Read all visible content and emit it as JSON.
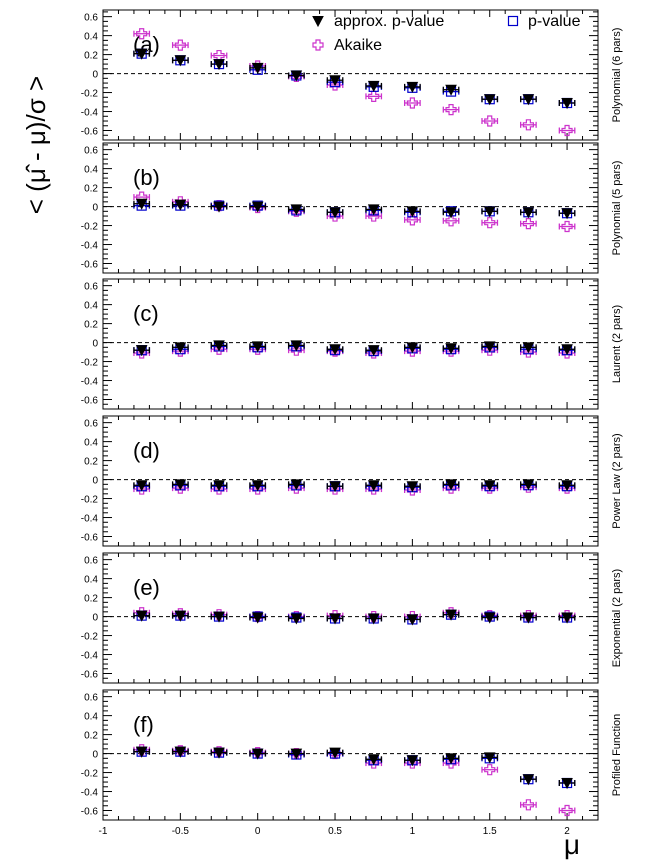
{
  "chart_data": {
    "type": "scatter",
    "ylabel": "< (μ̂ - μ)/σ >",
    "xlabel": "μ",
    "xlim": [
      -1,
      2.2
    ],
    "ylim": [
      -0.7,
      0.67
    ],
    "x_ticks": [
      -1,
      -0.5,
      0,
      0.5,
      1,
      1.5,
      2
    ],
    "x_tick_labels": [
      "-1",
      "-0.5",
      "0",
      "0.5",
      "1",
      "1.5",
      "2"
    ],
    "y_ticks": [
      -0.6,
      -0.4,
      -0.2,
      0,
      0.2,
      0.4,
      0.6
    ],
    "y_tick_labels": [
      "-0.6",
      "-0.4",
      "-0.2",
      "0",
      "0.2",
      "0.4",
      "0.6"
    ],
    "x": [
      -0.75,
      -0.5,
      -0.25,
      0,
      0.25,
      0.5,
      0.75,
      1,
      1.25,
      1.5,
      1.75,
      2
    ],
    "x_error": 0.05,
    "legend": {
      "position": "top-right",
      "entries": [
        {
          "label": "approx. p-value",
          "marker": "triangle-down-filled",
          "color": "#000000"
        },
        {
          "label": "p-value",
          "marker": "square-open",
          "color": "#0000cc"
        },
        {
          "label": "Akaike",
          "marker": "cross-open",
          "color": "#cc33cc"
        }
      ]
    },
    "panels": [
      {
        "letter": "(a)",
        "side_label": "Polynomial (6 pars)",
        "series": [
          {
            "name": "approx. p-value",
            "values": [
              0.21,
              0.14,
              0.1,
              0.06,
              -0.02,
              -0.07,
              -0.13,
              -0.14,
              -0.17,
              -0.27,
              -0.27,
              -0.31
            ]
          },
          {
            "name": "p-value",
            "values": [
              0.21,
              0.14,
              0.1,
              0.04,
              -0.02,
              -0.09,
              -0.14,
              -0.15,
              -0.19,
              -0.27,
              -0.27,
              -0.31
            ]
          },
          {
            "name": "Akaike",
            "values": [
              0.42,
              0.3,
              0.19,
              0.08,
              -0.03,
              -0.12,
              -0.24,
              -0.31,
              -0.38,
              -0.5,
              -0.54,
              -0.6
            ]
          }
        ]
      },
      {
        "letter": "(b)",
        "side_label": "Polynomial (5 pars)",
        "series": [
          {
            "name": "approx. p-value",
            "values": [
              0.03,
              0.02,
              0.0,
              0.0,
              -0.03,
              -0.06,
              -0.03,
              -0.05,
              -0.06,
              -0.05,
              -0.06,
              -0.07
            ]
          },
          {
            "name": "p-value",
            "values": [
              0.01,
              0.01,
              0.01,
              0.01,
              -0.04,
              -0.06,
              -0.04,
              -0.06,
              -0.05,
              -0.05,
              -0.06,
              -0.07
            ]
          },
          {
            "name": "Akaike",
            "values": [
              0.1,
              0.05,
              0.01,
              -0.01,
              -0.05,
              -0.1,
              -0.1,
              -0.14,
              -0.15,
              -0.17,
              -0.18,
              -0.21
            ]
          }
        ]
      },
      {
        "letter": "(c)",
        "side_label": "Laurent (2 pars)",
        "series": [
          {
            "name": "approx. p-value",
            "values": [
              -0.08,
              -0.05,
              -0.03,
              -0.04,
              -0.03,
              -0.07,
              -0.08,
              -0.05,
              -0.06,
              -0.04,
              -0.05,
              -0.07
            ]
          },
          {
            "name": "p-value",
            "values": [
              -0.08,
              -0.07,
              -0.04,
              -0.05,
              -0.04,
              -0.08,
              -0.09,
              -0.06,
              -0.07,
              -0.05,
              -0.07,
              -0.08
            ]
          },
          {
            "name": "Akaike",
            "values": [
              -0.11,
              -0.09,
              -0.07,
              -0.07,
              -0.08,
              -0.09,
              -0.11,
              -0.09,
              -0.09,
              -0.08,
              -0.1,
              -0.11
            ]
          }
        ]
      },
      {
        "letter": "(d)",
        "side_label": "Power Law (2 pars)",
        "series": [
          {
            "name": "approx. p-value",
            "values": [
              -0.06,
              -0.05,
              -0.06,
              -0.06,
              -0.05,
              -0.07,
              -0.06,
              -0.07,
              -0.05,
              -0.06,
              -0.05,
              -0.06
            ]
          },
          {
            "name": "p-value",
            "values": [
              -0.07,
              -0.06,
              -0.07,
              -0.07,
              -0.06,
              -0.07,
              -0.07,
              -0.08,
              -0.06,
              -0.07,
              -0.06,
              -0.07
            ]
          },
          {
            "name": "Akaike",
            "values": [
              -0.1,
              -0.09,
              -0.1,
              -0.1,
              -0.09,
              -0.1,
              -0.1,
              -0.11,
              -0.09,
              -0.09,
              -0.08,
              -0.09
            ]
          }
        ]
      },
      {
        "letter": "(e)",
        "side_label": "Exponential (2 pars)",
        "series": [
          {
            "name": "approx. p-value",
            "values": [
              0.01,
              0.01,
              0.0,
              -0.01,
              -0.02,
              -0.02,
              -0.02,
              -0.03,
              0.02,
              -0.01,
              -0.01,
              -0.01
            ]
          },
          {
            "name": "p-value",
            "values": [
              0.01,
              0.01,
              0.0,
              0.0,
              -0.01,
              -0.02,
              -0.02,
              -0.03,
              0.02,
              0.0,
              -0.01,
              -0.01
            ]
          },
          {
            "name": "Akaike",
            "values": [
              0.04,
              0.03,
              0.02,
              0.0,
              0.0,
              0.01,
              0.0,
              0.0,
              0.04,
              0.01,
              0.01,
              0.01
            ]
          }
        ]
      },
      {
        "letter": "(f)",
        "side_label": "Profiled Function",
        "series": [
          {
            "name": "approx. p-value",
            "values": [
              0.02,
              0.02,
              0.01,
              0.0,
              0.0,
              0.01,
              -0.06,
              -0.07,
              -0.05,
              -0.04,
              -0.27,
              -0.31
            ]
          },
          {
            "name": "p-value",
            "values": [
              0.02,
              0.02,
              0.01,
              0.0,
              -0.01,
              0.0,
              -0.07,
              -0.07,
              -0.06,
              -0.05,
              -0.27,
              -0.31
            ]
          },
          {
            "name": "Akaike",
            "values": [
              0.04,
              0.03,
              0.02,
              0.01,
              0.0,
              0.0,
              -0.1,
              -0.1,
              -0.1,
              -0.17,
              -0.54,
              -0.6
            ]
          }
        ]
      }
    ]
  }
}
